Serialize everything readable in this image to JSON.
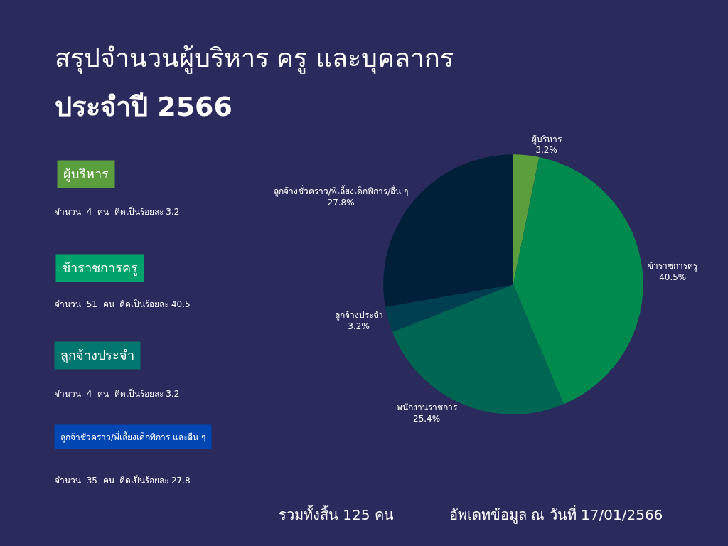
{
  "chart_data": {
    "type": "pie",
    "title": "สรุปจำนวนผู้บริหาร ครู และบุคลากร",
    "subtitle": "ประจำปี 2566",
    "categories": [
      "ผู้บริหาร",
      "ข้าราชการครู",
      "พนักงานราชการ",
      "ลูกจ้างประจำ",
      "ลูกจ้างชั่วคราว/พี่เลี้ยงเด็กพิการ/อื่น ๆ"
    ],
    "values": [
      3.2,
      40.5,
      25.4,
      3.2,
      27.8
    ],
    "value_labels": [
      "3.2%",
      "40.5%",
      "25.4%",
      "3.2%",
      "27.8%"
    ],
    "colors": [
      "#5b9e3d",
      "#008a4e",
      "#006654",
      "#003f52",
      "#00203a"
    ],
    "legend": false,
    "annotations": [
      "ผู้บริหาร",
      "จำนวน  4  คน  คิดเป็นร้อยละ 3.2",
      "ข้าราชการครู",
      "จำนวน  51  คน  คิดเป็นร้อยละ 40.5",
      "ลูกจ้างประจำ",
      "จำนวน  4  คน  คิดเป็นร้อยละ 3.2",
      "ลูกจ้าชั่วคราว/พี่เลี้ยงเด็กพิการ และอื่น ๆ",
      "จำนวน  35  คน  คิดเป็นร้อยละ 27.8",
      "รวมทั้งสิ้น 125 คน",
      "อัพเดทข้อมูล ณ วันที่ 17/01/2566"
    ]
  }
}
